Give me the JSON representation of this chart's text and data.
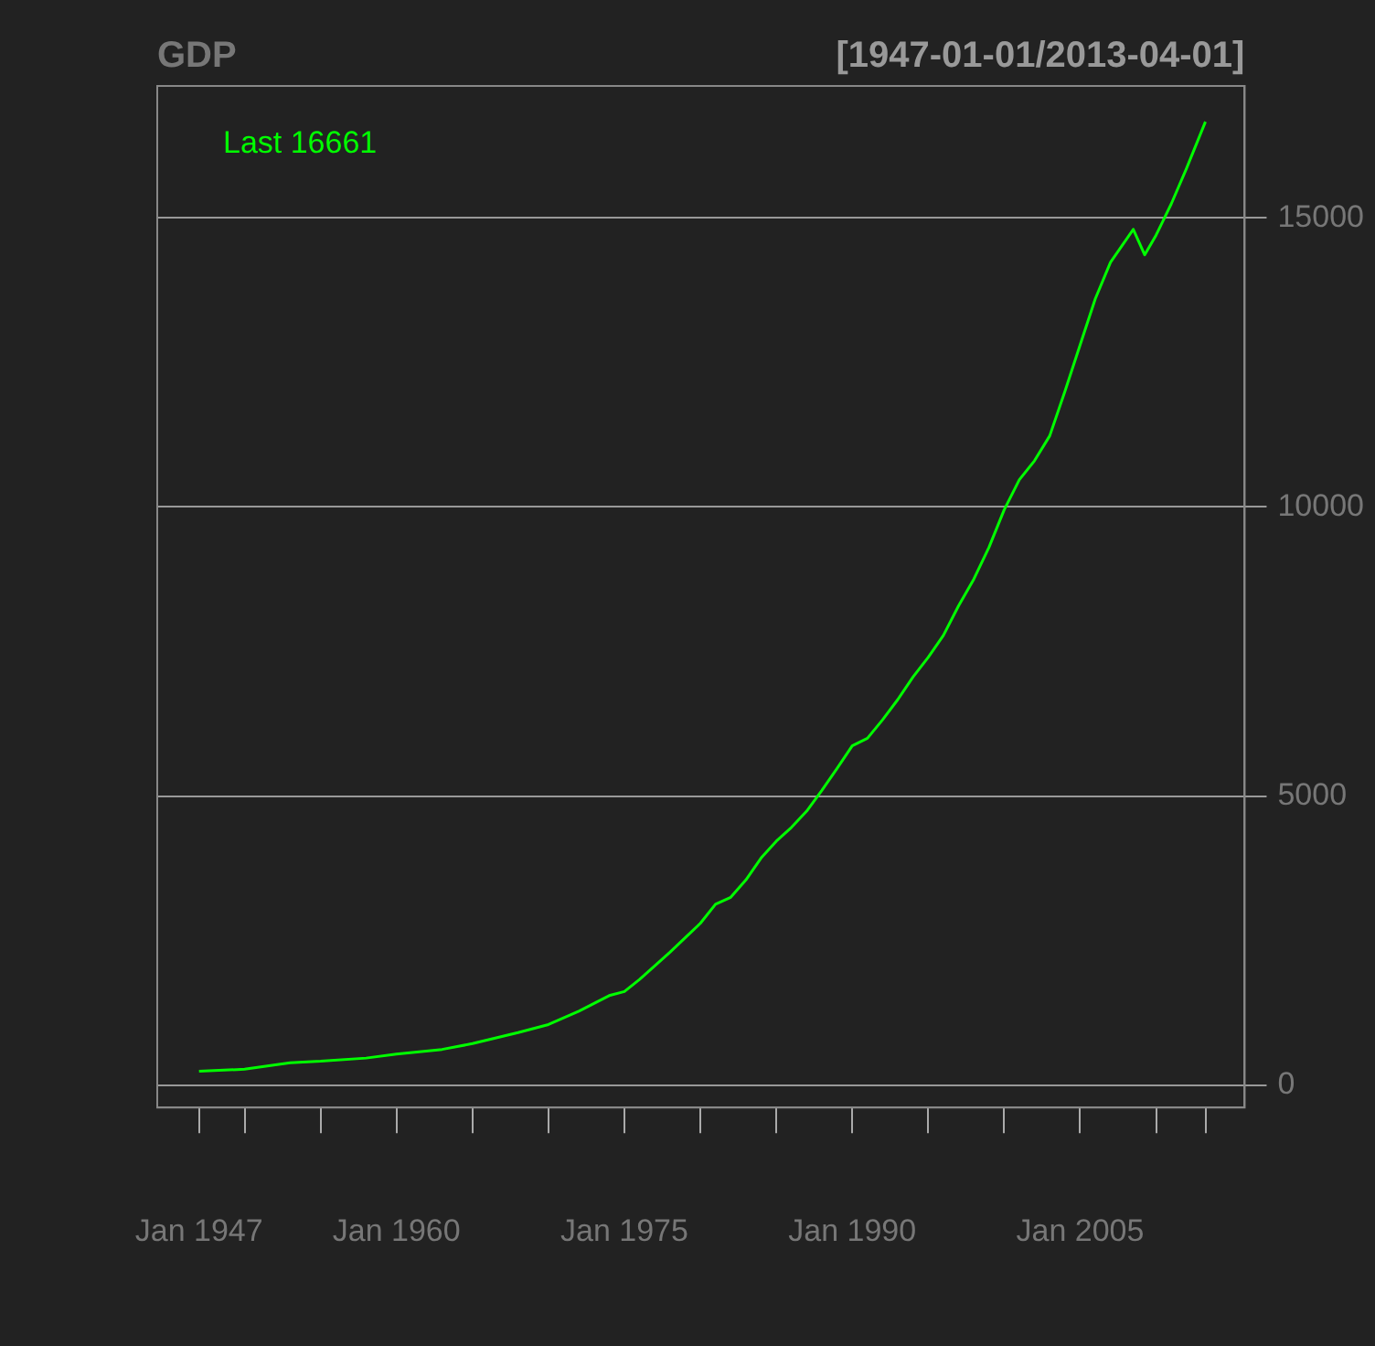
{
  "chart_data": {
    "type": "line",
    "title": "GDP",
    "subtitle": "[1947-01-01/2013-04-01]",
    "annotations": [
      "Last 16661"
    ],
    "x": [
      "1947-01",
      "1949-07",
      "1950-01",
      "1953-01",
      "1955-01",
      "1958-01",
      "1960-01",
      "1963-01",
      "1965-01",
      "1968-01",
      "1970-01",
      "1972-01",
      "1974-01",
      "1975-01",
      "1976-01",
      "1978-01",
      "1980-01",
      "1981-01",
      "1982-01",
      "1983-01",
      "1984-01",
      "1985-01",
      "1986-01",
      "1987-01",
      "1988-01",
      "1989-01",
      "1990-01",
      "1991-01",
      "1992-01",
      "1993-01",
      "1994-01",
      "1995-01",
      "1996-01",
      "1997-01",
      "1998-01",
      "1999-01",
      "2000-01",
      "2001-01",
      "2002-01",
      "2003-01",
      "2004-01",
      "2005-01",
      "2006-01",
      "2007-01",
      "2008-07",
      "2009-04",
      "2010-01",
      "2011-01",
      "2012-01",
      "2013-04"
    ],
    "series": [
      {
        "color": "#00ff00",
        "values": [
          243,
          272,
          280,
          390,
          415,
          470,
          540,
          620,
          720,
          910,
          1050,
          1280,
          1550,
          1620,
          1830,
          2300,
          2800,
          3130,
          3250,
          3550,
          3930,
          4220,
          4460,
          4740,
          5100,
          5480,
          5870,
          6000,
          6320,
          6670,
          7060,
          7400,
          7780,
          8290,
          8750,
          9300,
          9950,
          10470,
          10800,
          11230,
          12000,
          12800,
          13600,
          14230,
          14800,
          14360,
          14700,
          15240,
          15850,
          16661
        ]
      }
    ],
    "xlim": [
      "1944-04",
      "2015-11"
    ],
    "xticks": [
      {
        "value": "1947-01",
        "label": "Jan 1947"
      },
      {
        "value": "1950-01",
        "label": null
      },
      {
        "value": "1955-01",
        "label": null
      },
      {
        "value": "1960-01",
        "label": "Jan 1960"
      },
      {
        "value": "1965-01",
        "label": null
      },
      {
        "value": "1970-01",
        "label": null
      },
      {
        "value": "1975-01",
        "label": "Jan 1975"
      },
      {
        "value": "1980-01",
        "label": null
      },
      {
        "value": "1985-01",
        "label": null
      },
      {
        "value": "1990-01",
        "label": "Jan 1990"
      },
      {
        "value": "1995-01",
        "label": null
      },
      {
        "value": "2000-01",
        "label": null
      },
      {
        "value": "2005-01",
        "label": "Jan 2005"
      },
      {
        "value": "2010-01",
        "label": null
      },
      {
        "value": "2013-04",
        "label": null
      }
    ],
    "ylim": [
      -385,
      17280
    ],
    "yticks": [
      0,
      5000,
      10000,
      15000
    ],
    "grid": "y",
    "legend": false,
    "marker": "none",
    "line_style": "solid"
  }
}
